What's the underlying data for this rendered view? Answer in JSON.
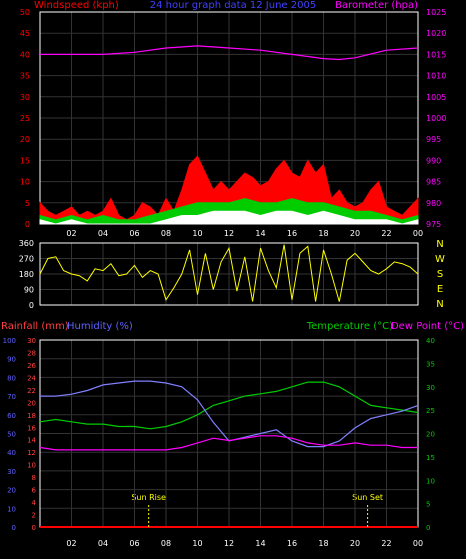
{
  "colors": {
    "background": "#000000",
    "frame": "#ffffff",
    "grid": "#333333",
    "wind_axis": "#ff0000",
    "title": "#4040ff",
    "baro_axis": "#ff00ff",
    "wind_gust": "#ff0000",
    "wind_avg": "#00cc00",
    "wind_min": "#ffffff",
    "barometer": "#ff00ff",
    "direction": "#ffff00",
    "compass": "#ffff00",
    "rain_axis": "#ff4040",
    "humidity_axis": "#6060ff",
    "temp_axis": "#00cc00",
    "dew_axis": "#ff00ff",
    "temperature": "#00cc00",
    "humidity": "#8080ff",
    "dewpoint": "#ff00ff",
    "rainfall": "#ff0000",
    "sun_markers": "#ffff00"
  },
  "chart_data": [
    {
      "type": "line",
      "panel": "wind_barometer",
      "title": "24 hour graph data 12 June 2005",
      "ylabel_left": "Windspeed (kph)",
      "ylabel_right": "Barometer (hpa)",
      "ylim_left": [
        0,
        50
      ],
      "ylim_right": [
        975,
        1025
      ],
      "yticks_left": [
        "0",
        "5",
        "10",
        "15",
        "20",
        "25",
        "30",
        "35",
        "40",
        "45",
        "50"
      ],
      "yticks_right": [
        "975",
        "980",
        "985",
        "990",
        "995",
        "1000",
        "1005",
        "1010",
        "1015",
        "1020",
        "1025"
      ],
      "xlim": [
        0,
        24
      ],
      "xticks": [
        "02",
        "04",
        "06",
        "08",
        "10",
        "12",
        "14",
        "16",
        "18",
        "20",
        "22",
        "00"
      ],
      "grid": true,
      "series": [
        {
          "name": "Barometer",
          "axis": "right",
          "x": [
            0,
            2,
            4,
            6,
            8,
            10,
            12,
            14,
            16,
            18,
            19,
            20,
            22,
            24
          ],
          "y": [
            1015,
            1015,
            1015,
            1015.5,
            1016.5,
            1017,
            1016.5,
            1016,
            1015,
            1014,
            1013.8,
            1014.2,
            1016,
            1016.5
          ]
        },
        {
          "name": "Gust",
          "axis": "left",
          "x": [
            0,
            0.5,
            1,
            1.5,
            2,
            2.5,
            3,
            3.5,
            4,
            4.5,
            5,
            5.5,
            6,
            6.5,
            7,
            7.5,
            8,
            8.5,
            9,
            9.5,
            10,
            10.5,
            11,
            11.5,
            12,
            12.5,
            13,
            13.5,
            14,
            14.5,
            15,
            15.5,
            16,
            16.5,
            17,
            17.5,
            18,
            18.5,
            19,
            19.5,
            20,
            20.5,
            21,
            21.5,
            22,
            22.5,
            23,
            23.5,
            24
          ],
          "y": [
            5,
            3,
            2,
            3,
            4,
            2,
            3,
            2,
            3,
            6,
            2,
            1,
            2,
            5,
            4,
            2,
            6,
            3,
            8,
            14,
            16,
            12,
            8,
            10,
            8,
            10,
            12,
            11,
            9,
            10,
            13,
            15,
            12,
            11,
            15,
            12,
            14,
            6,
            8,
            5,
            4,
            5,
            8,
            10,
            4,
            3,
            2,
            4,
            6
          ]
        },
        {
          "name": "Average",
          "axis": "left",
          "x": [
            0,
            1,
            2,
            3,
            4,
            5,
            6,
            7,
            8,
            9,
            10,
            11,
            12,
            13,
            14,
            15,
            16,
            17,
            18,
            19,
            20,
            21,
            22,
            23,
            24
          ],
          "y": [
            2,
            1,
            2,
            1,
            2,
            1,
            1,
            2,
            3,
            4,
            5,
            5,
            5,
            6,
            5,
            5,
            6,
            5,
            5,
            4,
            3,
            3,
            2,
            1,
            2
          ]
        },
        {
          "name": "Minimum",
          "axis": "left",
          "x": [
            0,
            1,
            2,
            3,
            4,
            5,
            6,
            7,
            8,
            9,
            10,
            11,
            12,
            13,
            14,
            15,
            16,
            17,
            18,
            19,
            20,
            21,
            22,
            23,
            24
          ],
          "y": [
            1,
            0,
            1,
            0,
            0,
            0,
            0,
            0,
            1,
            2,
            2,
            3,
            3,
            3,
            2,
            3,
            3,
            2,
            3,
            2,
            1,
            1,
            1,
            0,
            1
          ]
        }
      ]
    },
    {
      "type": "line",
      "panel": "wind_direction",
      "ylim": [
        0,
        360
      ],
      "yticks": [
        "0",
        "90",
        "180",
        "270",
        "360"
      ],
      "compass_labels": [
        "N",
        "W",
        "S",
        "E",
        "N"
      ],
      "xlim": [
        0,
        24
      ],
      "grid": true,
      "series": [
        {
          "name": "Direction",
          "x": [
            0,
            0.5,
            1,
            1.5,
            2,
            2.5,
            3,
            3.5,
            4,
            4.5,
            5,
            5.5,
            6,
            6.5,
            7,
            7.5,
            8,
            8.5,
            9,
            9.5,
            10,
            10.5,
            11,
            11.5,
            12,
            12.5,
            13,
            13.5,
            14,
            14.5,
            15,
            15.5,
            16,
            16.5,
            17,
            17.5,
            18,
            18.5,
            19,
            19.5,
            20,
            20.5,
            21,
            21.5,
            22,
            22.5,
            23,
            23.5,
            24
          ],
          "y": [
            180,
            270,
            280,
            200,
            180,
            170,
            140,
            210,
            200,
            240,
            170,
            180,
            230,
            160,
            200,
            180,
            30,
            100,
            180,
            320,
            60,
            300,
            90,
            250,
            330,
            80,
            280,
            20,
            330,
            200,
            100,
            350,
            30,
            300,
            340,
            20,
            320,
            180,
            20,
            260,
            300,
            250,
            200,
            180,
            210,
            250,
            240,
            220,
            180
          ]
        }
      ]
    },
    {
      "type": "line",
      "panel": "temp_humidity_rain",
      "ylabel_left_1": "Rainfall (mm)",
      "ylabel_left_2": "Humidity (%)",
      "ylabel_right_1": "Temperature (°C)",
      "ylabel_right_2": "Dew Point (°C)",
      "humidity_ticks": [
        "0",
        "10",
        "20",
        "30",
        "40",
        "50",
        "60",
        "70",
        "80",
        "90",
        "100"
      ],
      "rain_ticks": [
        "0",
        "2",
        "4",
        "6",
        "8",
        "10",
        "12",
        "14",
        "16",
        "18",
        "20",
        "22",
        "24",
        "26",
        "28",
        "30"
      ],
      "temp_ticks": [
        "0",
        "5",
        "10",
        "15",
        "20",
        "25",
        "30",
        "35",
        "40"
      ],
      "ylim_humidity": [
        0,
        100
      ],
      "ylim_temp": [
        0,
        40
      ],
      "xlim": [
        0,
        24
      ],
      "xticks": [
        "02",
        "04",
        "06",
        "08",
        "10",
        "12",
        "14",
        "16",
        "18",
        "20",
        "22",
        "00"
      ],
      "grid": true,
      "sunrise_label": "Sun Rise",
      "sunset_label": "Sun Set",
      "sunrise_time": 6.9,
      "sunset_time": 20.8,
      "series": [
        {
          "name": "Temperature",
          "axis": "temp",
          "x": [
            0,
            1,
            2,
            3,
            4,
            5,
            6,
            7,
            8,
            9,
            10,
            11,
            12,
            13,
            14,
            15,
            16,
            17,
            18,
            19,
            20,
            21,
            22,
            23,
            24
          ],
          "y": [
            22.5,
            23,
            22.5,
            22,
            22,
            21.5,
            21.5,
            21,
            21.5,
            22.5,
            24,
            26,
            27,
            28,
            28.5,
            29,
            30,
            31,
            31,
            30,
            28,
            26,
            25.5,
            25,
            24.5
          ]
        },
        {
          "name": "Humidity",
          "axis": "humidity",
          "x": [
            0,
            1,
            2,
            3,
            4,
            5,
            6,
            7,
            8,
            9,
            10,
            11,
            12,
            13,
            14,
            15,
            16,
            17,
            18,
            19,
            20,
            21,
            22,
            23,
            24
          ],
          "y": [
            70,
            70,
            71,
            73,
            76,
            77,
            78,
            78,
            77,
            75,
            68,
            56,
            46,
            48,
            50,
            52,
            46,
            43,
            43,
            46,
            53,
            58,
            60,
            62,
            65
          ]
        },
        {
          "name": "Dew Point",
          "axis": "temp",
          "x": [
            0,
            1,
            2,
            3,
            4,
            5,
            6,
            7,
            8,
            9,
            10,
            11,
            12,
            13,
            14,
            15,
            16,
            17,
            18,
            19,
            20,
            21,
            22,
            23,
            24
          ],
          "y": [
            17,
            16.5,
            16.5,
            16.5,
            16.5,
            16.5,
            16.5,
            16.5,
            16.5,
            17,
            18,
            19,
            18.5,
            19,
            19.5,
            19.5,
            19,
            18,
            17.5,
            17.5,
            18,
            17.5,
            17.5,
            17,
            17
          ]
        },
        {
          "name": "Rainfall",
          "axis": "humidity",
          "x": [
            0,
            24
          ],
          "y": [
            0,
            0
          ]
        }
      ]
    }
  ]
}
